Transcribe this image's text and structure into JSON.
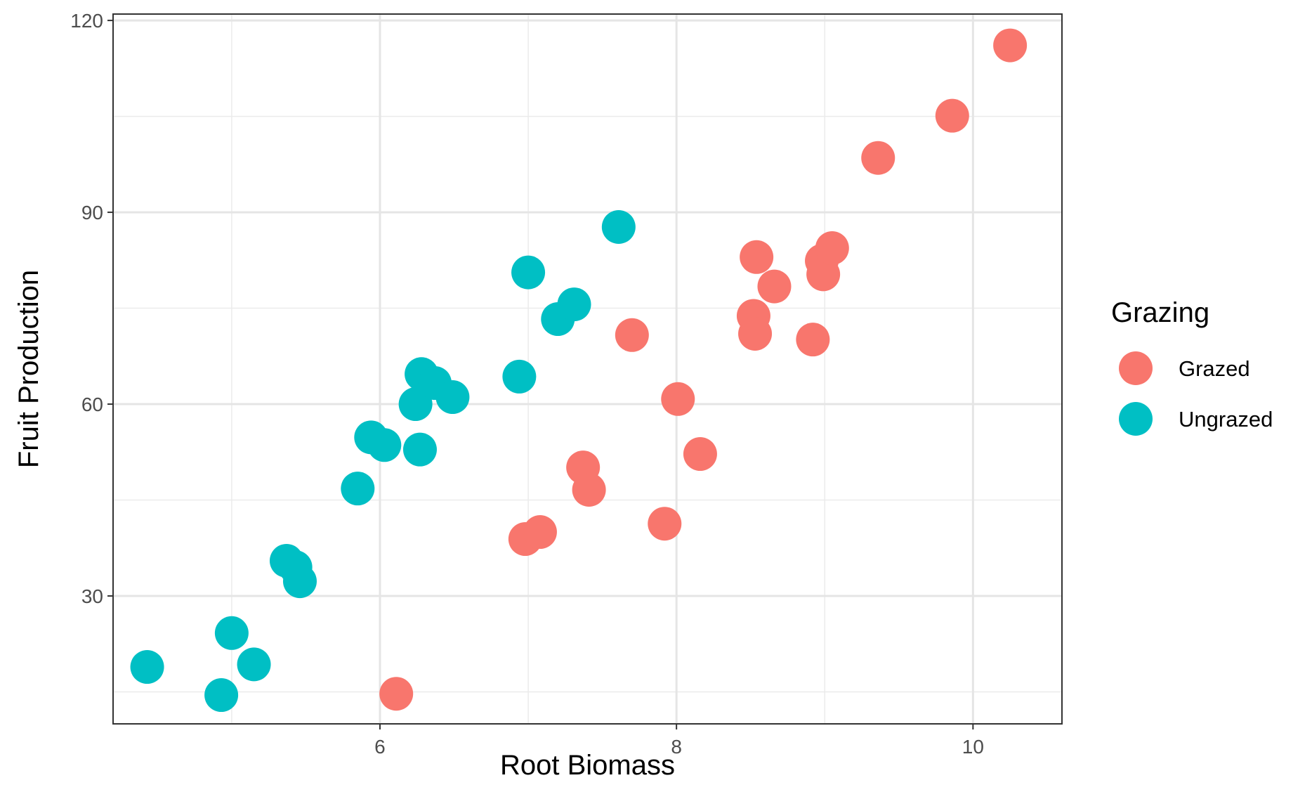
{
  "chart_data": {
    "type": "scatter",
    "title": "",
    "xlabel": "Root Biomass",
    "ylabel": "Fruit Production",
    "xlim": [
      4.2,
      10.6
    ],
    "ylim": [
      10,
      121
    ],
    "xticks": [
      6,
      8,
      10
    ],
    "xminor": [
      5,
      7,
      9
    ],
    "yticks": [
      30,
      60,
      90,
      120
    ],
    "yminor": [
      15,
      45,
      75,
      105
    ],
    "grid": true,
    "legend": {
      "title": "Grazing",
      "position": "right"
    },
    "series": [
      {
        "name": "Grazed",
        "color": "#F8766D",
        "points": [
          {
            "x": 6.11,
            "y": 14.7
          },
          {
            "x": 6.98,
            "y": 38.9
          },
          {
            "x": 7.08,
            "y": 40.0
          },
          {
            "x": 7.37,
            "y": 50.1
          },
          {
            "x": 7.41,
            "y": 46.6
          },
          {
            "x": 7.7,
            "y": 70.8
          },
          {
            "x": 7.92,
            "y": 41.3
          },
          {
            "x": 8.01,
            "y": 60.8
          },
          {
            "x": 8.16,
            "y": 52.2
          },
          {
            "x": 8.52,
            "y": 73.8
          },
          {
            "x": 8.53,
            "y": 71.0
          },
          {
            "x": 8.54,
            "y": 83.0
          },
          {
            "x": 8.66,
            "y": 78.4
          },
          {
            "x": 8.92,
            "y": 70.1
          },
          {
            "x": 8.98,
            "y": 82.4
          },
          {
            "x": 8.99,
            "y": 80.3
          },
          {
            "x": 9.05,
            "y": 84.4
          },
          {
            "x": 9.36,
            "y": 98.5
          },
          {
            "x": 9.86,
            "y": 105.1
          },
          {
            "x": 10.25,
            "y": 116.1
          }
        ]
      },
      {
        "name": "Ungrazed",
        "color": "#00BFC4",
        "points": [
          {
            "x": 4.43,
            "y": 18.9
          },
          {
            "x": 4.93,
            "y": 14.5
          },
          {
            "x": 5.0,
            "y": 24.2
          },
          {
            "x": 5.15,
            "y": 19.3
          },
          {
            "x": 5.37,
            "y": 35.5
          },
          {
            "x": 5.43,
            "y": 34.5
          },
          {
            "x": 5.46,
            "y": 32.3
          },
          {
            "x": 5.85,
            "y": 46.8
          },
          {
            "x": 5.94,
            "y": 54.8
          },
          {
            "x": 6.03,
            "y": 53.6
          },
          {
            "x": 6.24,
            "y": 60.0
          },
          {
            "x": 6.27,
            "y": 52.9
          },
          {
            "x": 6.28,
            "y": 64.7
          },
          {
            "x": 6.37,
            "y": 63.3
          },
          {
            "x": 6.49,
            "y": 61.1
          },
          {
            "x": 6.94,
            "y": 64.3
          },
          {
            "x": 7.0,
            "y": 80.6
          },
          {
            "x": 7.2,
            "y": 73.3
          },
          {
            "x": 7.31,
            "y": 75.6
          },
          {
            "x": 7.61,
            "y": 87.7
          }
        ]
      }
    ]
  }
}
